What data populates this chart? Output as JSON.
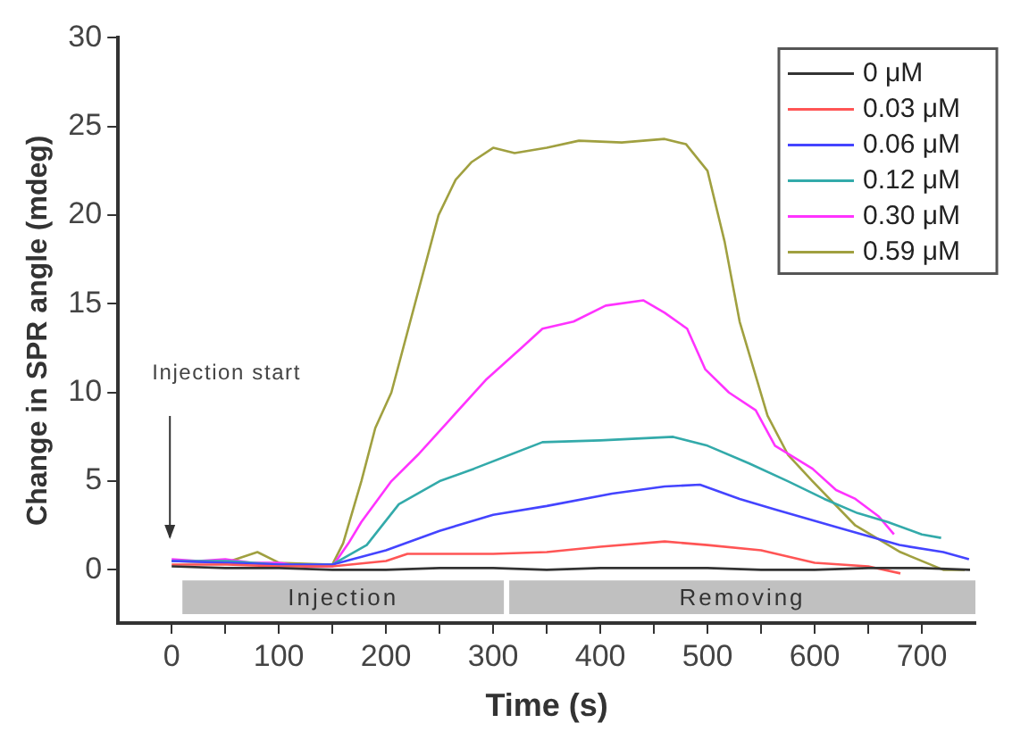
{
  "chart_data": {
    "type": "line",
    "xlabel": "Time (s)",
    "ylabel": "Change in SPR angle (mdeg)",
    "xlim": [
      -50,
      750
    ],
    "ylim": [
      -3,
      30
    ],
    "xticks": [
      0,
      {
        "value": 50,
        "label": null
      },
      100,
      {
        "value": 150,
        "label": null
      },
      200,
      {
        "value": 250,
        "label": null
      },
      300,
      {
        "value": 350,
        "label": null
      },
      400,
      {
        "value": 450,
        "label": null
      },
      500,
      {
        "value": 550,
        "label": null
      },
      600,
      {
        "value": 650,
        "label": null
      },
      700
    ],
    "yticks": [
      0,
      5,
      10,
      15,
      20,
      25,
      30
    ],
    "grid": false,
    "legend": "top right",
    "marker": "none",
    "line_style": "solid",
    "bands": [
      {
        "axis": "x",
        "from": 10,
        "to": 310,
        "label": "Injection",
        "color": "#c0c0c0"
      },
      {
        "axis": "x",
        "from": 315,
        "to": 750,
        "label": "Removing",
        "color": "#c0c0c0"
      }
    ],
    "annotations": [
      "Injection start"
    ],
    "series": [
      {
        "name": "0 μM",
        "color": "#333333",
        "x": [
          0,
          50,
          100,
          150,
          200,
          250,
          300,
          350,
          400,
          450,
          500,
          550,
          600,
          650,
          700,
          745
        ],
        "values": [
          0.2,
          0.1,
          0.1,
          0,
          0,
          0.1,
          0.1,
          0,
          0.1,
          0.1,
          0.1,
          0,
          0,
          0.1,
          0.1,
          0
        ]
      },
      {
        "name": "0.03 μM",
        "color": "#ff5555",
        "x": [
          0,
          50,
          100,
          150,
          200,
          220,
          300,
          350,
          400,
          460,
          500,
          550,
          600,
          650,
          680
        ],
        "values": [
          0.3,
          0.3,
          0.2,
          0.2,
          0.5,
          0.9,
          0.9,
          1,
          1.3,
          1.6,
          1.4,
          1.1,
          0.4,
          0.2,
          -0.2
        ]
      },
      {
        "name": "0.06 μM",
        "color": "#4444ff",
        "x": [
          0,
          50,
          100,
          150,
          200,
          250,
          300,
          350,
          411,
          460,
          493,
          530,
          563,
          621,
          679,
          720,
          744
        ],
        "values": [
          0.5,
          0.4,
          0.3,
          0.3,
          1.1,
          2.2,
          3.1,
          3.6,
          4.3,
          4.7,
          4.8,
          4,
          3.4,
          2.4,
          1.4,
          1,
          0.6
        ]
      },
      {
        "name": "0.12 μM",
        "color": "#33aaaa",
        "x": [
          0,
          50,
          100,
          150,
          182,
          212,
          250,
          282,
          346,
          400,
          468,
          500,
          539,
          575,
          609,
          640,
          668,
          700,
          718
        ],
        "values": [
          0.5,
          0.5,
          0.3,
          0.3,
          1.4,
          3.7,
          5,
          5.7,
          7.2,
          7.3,
          7.5,
          7,
          6,
          5,
          4,
          3.2,
          2.7,
          2,
          1.8
        ]
      },
      {
        "name": "0.30 μM",
        "color": "#ff33ff",
        "x": [
          0,
          25,
          50,
          75,
          100,
          125,
          150,
          165,
          177,
          205,
          230,
          260,
          293,
          328,
          346,
          375,
          405,
          440,
          460,
          481,
          498,
          520,
          545,
          563,
          598,
          620,
          638,
          660,
          674
        ],
        "values": [
          0.6,
          0.5,
          0.6,
          0.4,
          0.4,
          0.2,
          0.2,
          1.5,
          2.7,
          5,
          6.5,
          8.5,
          10.7,
          12.6,
          13.6,
          14,
          14.9,
          15.2,
          14.5,
          13.6,
          11.3,
          10,
          9,
          7,
          5.7,
          4.5,
          4,
          3,
          2
        ]
      },
      {
        "name": "0.59 μM",
        "color": "#a0a040",
        "x": [
          0,
          50,
          80,
          100,
          150,
          160,
          177,
          190,
          205,
          249,
          265,
          280,
          300,
          320,
          350,
          380,
          420,
          460,
          480,
          500,
          516,
          530,
          556,
          575,
          598,
          638,
          680,
          720,
          740
        ],
        "values": [
          0.5,
          0.4,
          1,
          0.4,
          0.3,
          1.5,
          5,
          8,
          10,
          20,
          22,
          23,
          23.8,
          23.5,
          23.8,
          24.2,
          24.1,
          24.3,
          24,
          22.5,
          18.5,
          14,
          8.7,
          6.5,
          5,
          2.5,
          1,
          0,
          0
        ]
      }
    ]
  }
}
